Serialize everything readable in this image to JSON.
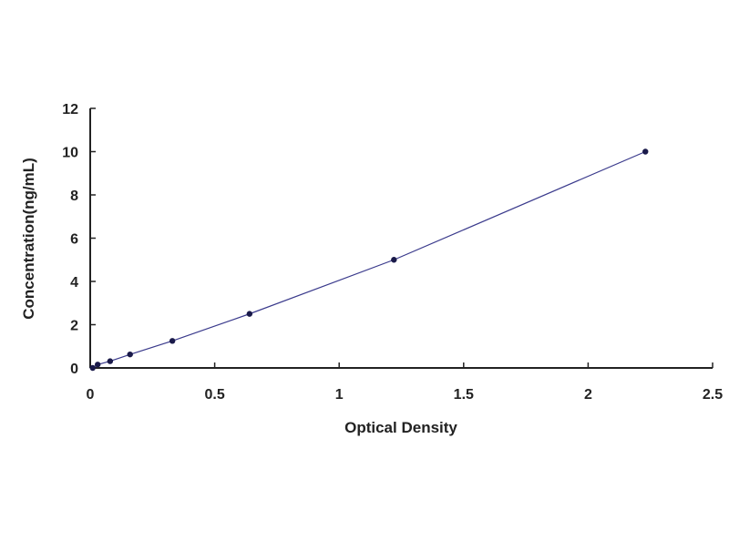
{
  "chart_data": {
    "type": "scatter",
    "title": "",
    "xlabel": "Optical Density",
    "ylabel": "Concentration(ng/mL)",
    "xlim": [
      0,
      2.5
    ],
    "ylim": [
      0,
      12
    ],
    "xticks": [
      "0",
      "0.5",
      "1",
      "1.5",
      "2",
      "2.5"
    ],
    "yticks": [
      "0",
      "2",
      "4",
      "6",
      "8",
      "10",
      "12"
    ],
    "grid": false,
    "legend": "none",
    "fit_line": true,
    "series": [
      {
        "x": [
          0.01,
          0.03,
          0.08,
          0.16,
          0.33,
          0.64,
          1.22,
          2.23
        ],
        "y": [
          0,
          0.156,
          0.312,
          0.625,
          1.25,
          2.5,
          5,
          10
        ]
      }
    ],
    "colors": {
      "line": "#3a3a8c",
      "marker": "#1a1a4a",
      "axis": "#222222"
    }
  }
}
